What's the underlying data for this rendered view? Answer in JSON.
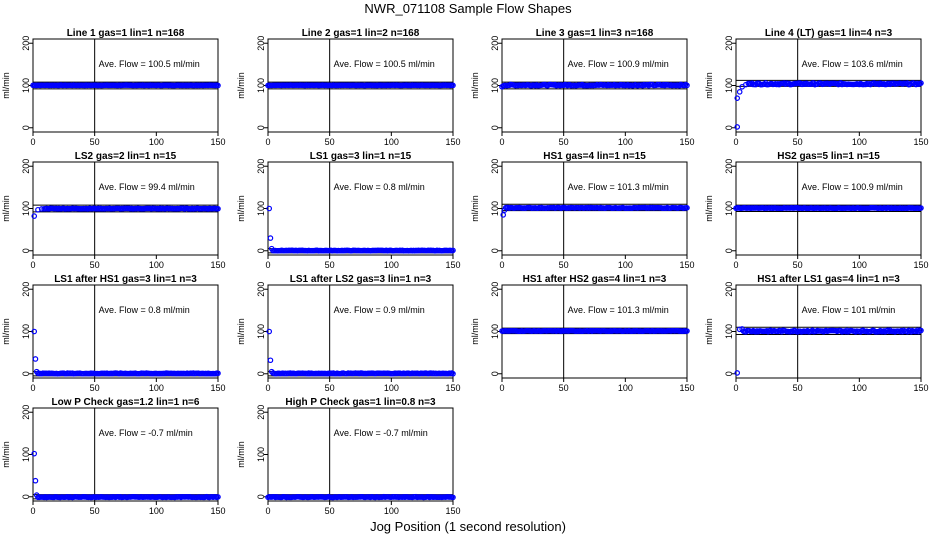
{
  "title": "NWR_071108  Sample Flow Shapes",
  "xlabel": "Jog Position (1 second resolution)",
  "chart_data": [
    {
      "type": "scatter",
      "title": "Line 1 gas=1 lin=1 n=168",
      "ylabel": "ml/min",
      "annotation": "Ave. Flow =  100.5  ml/min",
      "xlim": [
        0,
        150
      ],
      "ylim": [
        -10,
        210
      ],
      "xticks": [
        0,
        50,
        100,
        150
      ],
      "yticks": [
        0,
        100,
        200
      ],
      "vline": 50,
      "hlines": [
        92,
        108
      ],
      "profile": {
        "start": [],
        "plateau": 100.5,
        "plateau_start": 0,
        "end": 150,
        "noise": 0.5
      }
    },
    {
      "type": "scatter",
      "title": "Line 2 gas=1 lin=2 n=168",
      "ylabel": "ml/min",
      "annotation": "Ave. Flow =  100.5  ml/min",
      "xlim": [
        0,
        150
      ],
      "ylim": [
        -10,
        210
      ],
      "xticks": [
        0,
        50,
        100,
        150
      ],
      "yticks": [
        0,
        100,
        200
      ],
      "vline": 50,
      "hlines": [
        92,
        108
      ],
      "profile": {
        "start": [],
        "plateau": 100.5,
        "plateau_start": 0,
        "end": 150,
        "noise": 0.5
      }
    },
    {
      "type": "scatter",
      "title": "Line 3 gas=1 lin=3 n=168",
      "ylabel": "ml/min",
      "annotation": "Ave. Flow =  100.9  ml/min",
      "xlim": [
        0,
        150
      ],
      "ylim": [
        -10,
        210
      ],
      "xticks": [
        0,
        50,
        100,
        150
      ],
      "yticks": [
        0,
        100,
        200
      ],
      "vline": 50,
      "hlines": [
        92,
        108
      ],
      "profile": {
        "start": [
          [
            0,
            97
          ],
          [
            1,
            99
          ]
        ],
        "plateau": 101,
        "plateau_start": 2,
        "end": 150,
        "noise": 1.5
      }
    },
    {
      "type": "scatter",
      "title": "Line 4 (LT) gas=1 lin=4 n=3",
      "ylabel": "ml/min",
      "annotation": "Ave. Flow =  103.6  ml/min",
      "xlim": [
        0,
        150
      ],
      "ylim": [
        -10,
        210
      ],
      "xticks": [
        0,
        50,
        100,
        150
      ],
      "yticks": [
        0,
        100,
        200
      ],
      "vline": 50,
      "hlines": [
        98,
        112
      ],
      "profile": {
        "start": [
          [
            1,
            2
          ],
          [
            1,
            70
          ],
          [
            3,
            85
          ],
          [
            5,
            97
          ],
          [
            8,
            102
          ]
        ],
        "plateau": 104,
        "plateau_start": 10,
        "end": 150,
        "noise": 2
      }
    },
    {
      "type": "scatter",
      "title": "LS2 gas=2 lin=1 n=15",
      "ylabel": "ml/min",
      "annotation": "Ave. Flow =  99.4  ml/min",
      "xlim": [
        0,
        150
      ],
      "ylim": [
        -10,
        210
      ],
      "xticks": [
        0,
        50,
        100,
        150
      ],
      "yticks": [
        0,
        100,
        200
      ],
      "vline": 50,
      "hlines": [
        92,
        108
      ],
      "profile": {
        "start": [
          [
            1,
            82
          ],
          [
            4,
            97
          ],
          [
            7,
            99
          ]
        ],
        "plateau": 99.8,
        "plateau_start": 9,
        "end": 150,
        "noise": 0.8
      }
    },
    {
      "type": "scatter",
      "title": "LS1 gas=3 lin=1 n=15",
      "ylabel": "ml/min",
      "annotation": "Ave. Flow =  0.8  ml/min",
      "xlim": [
        0,
        150
      ],
      "ylim": [
        -10,
        210
      ],
      "xticks": [
        0,
        50,
        100,
        150
      ],
      "yticks": [
        0,
        100,
        200
      ],
      "vline": 50,
      "hlines": [
        -5,
        5
      ],
      "profile": {
        "start": [
          [
            1,
            100
          ],
          [
            2,
            30
          ],
          [
            3,
            5
          ]
        ],
        "plateau": 0.5,
        "plateau_start": 4,
        "end": 150,
        "noise": 0.6
      }
    },
    {
      "type": "scatter",
      "title": "HS1 gas=4 lin=1 n=15",
      "ylabel": "ml/min",
      "annotation": "Ave. Flow =  101.3  ml/min",
      "xlim": [
        0,
        150
      ],
      "ylim": [
        -10,
        210
      ],
      "xticks": [
        0,
        50,
        100,
        150
      ],
      "yticks": [
        0,
        100,
        200
      ],
      "vline": 50,
      "hlines": [
        95,
        110
      ],
      "profile": {
        "start": [
          [
            1,
            85
          ],
          [
            2,
            96
          ]
        ],
        "plateau": 101.5,
        "plateau_start": 3,
        "end": 150,
        "noise": 0.8
      }
    },
    {
      "type": "scatter",
      "title": "HS2 gas=5 lin=1 n=15",
      "ylabel": "ml/min",
      "annotation": "Ave. Flow =  100.9  ml/min",
      "xlim": [
        0,
        150
      ],
      "ylim": [
        -10,
        210
      ],
      "xticks": [
        0,
        50,
        100,
        150
      ],
      "yticks": [
        0,
        100,
        200
      ],
      "vline": 50,
      "hlines": [
        93,
        108
      ],
      "profile": {
        "start": [],
        "plateau": 101,
        "plateau_start": 0,
        "end": 150,
        "noise": 0.6
      }
    },
    {
      "type": "scatter",
      "title": "LS1 after HS1 gas=3 lin=1 n=3",
      "ylabel": "ml/min",
      "annotation": "Ave. Flow =  0.8  ml/min",
      "xlim": [
        0,
        150
      ],
      "ylim": [
        -10,
        210
      ],
      "xticks": [
        0,
        50,
        100,
        150
      ],
      "yticks": [
        0,
        100,
        200
      ],
      "vline": 50,
      "hlines": [
        -5,
        5
      ],
      "profile": {
        "start": [
          [
            1,
            100
          ],
          [
            2,
            35
          ],
          [
            3,
            5
          ]
        ],
        "plateau": 0.8,
        "plateau_start": 4,
        "end": 150,
        "noise": 0.8
      }
    },
    {
      "type": "scatter",
      "title": "LS1 after LS2 gas=3 lin=1 n=3",
      "ylabel": "ml/min",
      "annotation": "Ave. Flow =  0.9  ml/min",
      "xlim": [
        0,
        150
      ],
      "ylim": [
        -10,
        210
      ],
      "xticks": [
        0,
        50,
        100,
        150
      ],
      "yticks": [
        0,
        100,
        200
      ],
      "vline": 50,
      "hlines": [
        -5,
        5
      ],
      "profile": {
        "start": [
          [
            1,
            100
          ],
          [
            2,
            32
          ],
          [
            3,
            5
          ]
        ],
        "plateau": 0.9,
        "plateau_start": 4,
        "end": 150,
        "noise": 0.8
      }
    },
    {
      "type": "scatter",
      "title": "HS1 after HS2 gas=4 lin=1 n=3",
      "ylabel": "ml/min",
      "annotation": "Ave. Flow =  101.3  ml/min",
      "xlim": [
        0,
        150
      ],
      "ylim": [
        -10,
        210
      ],
      "xticks": [
        0,
        50,
        100,
        150
      ],
      "yticks": [
        0,
        100,
        200
      ],
      "vline": 50,
      "hlines": [
        95,
        108
      ],
      "profile": {
        "start": [],
        "plateau": 101.3,
        "plateau_start": 0,
        "end": 150,
        "noise": 0.6
      }
    },
    {
      "type": "scatter",
      "title": "HS1 after LS1 gas=4 lin=1 n=3",
      "ylabel": "ml/min",
      "annotation": "Ave. Flow =  101  ml/min",
      "xlim": [
        0,
        150
      ],
      "ylim": [
        -10,
        210
      ],
      "xticks": [
        0,
        50,
        100,
        150
      ],
      "yticks": [
        0,
        100,
        200
      ],
      "vline": 50,
      "hlines": [
        93,
        110
      ],
      "profile": {
        "start": [
          [
            1,
            2
          ],
          [
            3,
            105
          ],
          [
            5,
            106
          ]
        ],
        "plateau": 101,
        "plateau_start": 6,
        "end": 150,
        "noise": 2
      }
    },
    {
      "type": "scatter",
      "title": "Low P Check gas=1.2 lin=1 n=6",
      "ylabel": "ml/min",
      "annotation": "Ave. Flow =  -0.7  ml/min",
      "xlim": [
        0,
        150
      ],
      "ylim": [
        -10,
        210
      ],
      "xticks": [
        0,
        50,
        100,
        150
      ],
      "yticks": [
        0,
        100,
        200
      ],
      "vline": 50,
      "hlines": [
        -5,
        5
      ],
      "profile": {
        "start": [
          [
            1,
            102
          ],
          [
            2,
            38
          ],
          [
            3,
            4
          ]
        ],
        "plateau": -0.7,
        "plateau_start": 4,
        "end": 150,
        "noise": 0.8
      }
    },
    {
      "type": "scatter",
      "title": "High P Check gas=1 lin=0.8 n=3",
      "ylabel": "ml/min",
      "annotation": "Ave. Flow =  -0.7  ml/min",
      "xlim": [
        0,
        150
      ],
      "ylim": [
        -10,
        210
      ],
      "xticks": [
        0,
        50,
        100,
        150
      ],
      "yticks": [
        0,
        100,
        200
      ],
      "vline": 50,
      "hlines": [
        -5,
        5
      ],
      "profile": {
        "start": [],
        "plateau": -0.7,
        "plateau_start": 0,
        "end": 150,
        "noise": 0.8
      }
    }
  ],
  "colors": {
    "points": "#0000ff",
    "lines": "#000000"
  }
}
